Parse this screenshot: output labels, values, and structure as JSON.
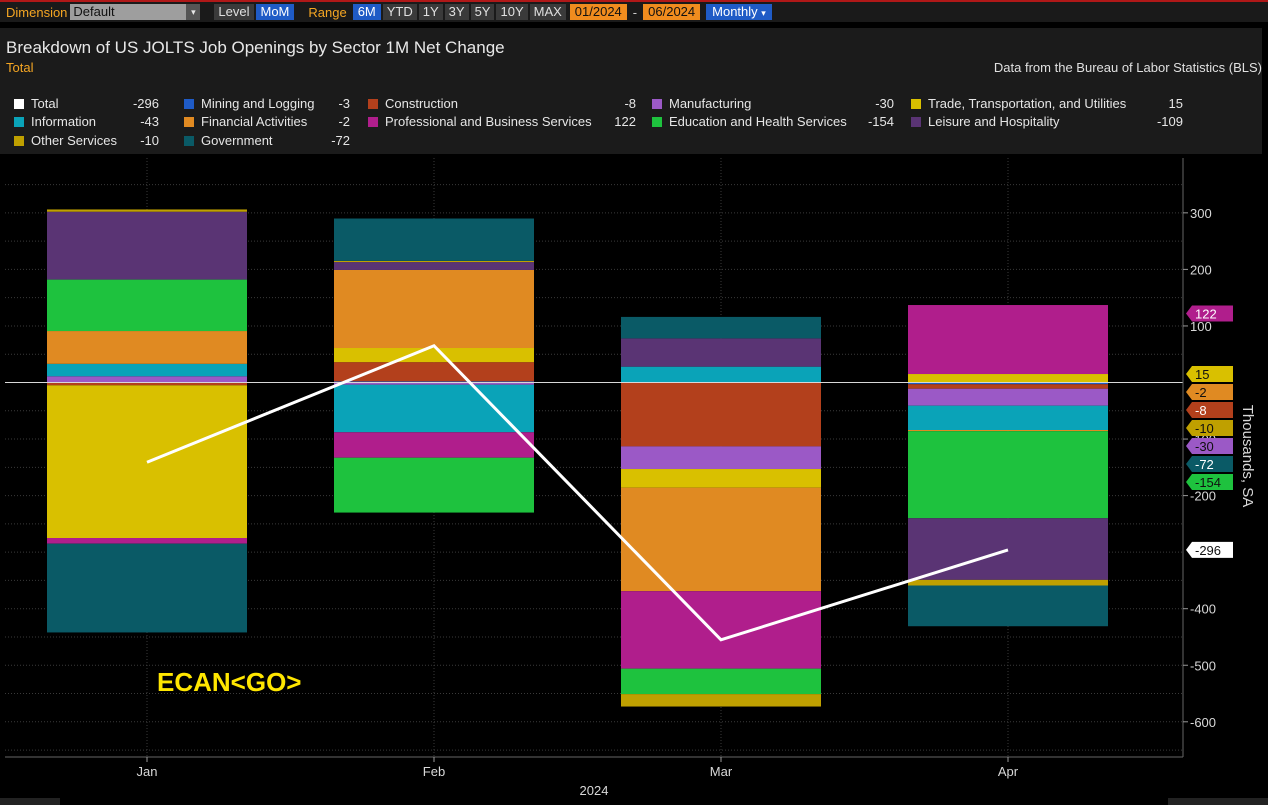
{
  "toolbar": {
    "dimension_label": "Dimension",
    "dimension_value": "Default",
    "level_label": "Level",
    "level_value": "MoM",
    "range_label": "Range",
    "ranges": [
      "6M",
      "YTD",
      "1Y",
      "3Y",
      "5Y",
      "10Y",
      "MAX"
    ],
    "active_range": "6M",
    "start_date": "01/2024",
    "end_date": "06/2024",
    "frequency": "Monthly"
  },
  "header": {
    "title": "Breakdown of US JOLTS Job Openings by Sector 1M Net Change",
    "subtitle": "Total",
    "source": "Data from the Bureau of Labor Statistics (BLS)"
  },
  "legend": [
    {
      "name": "Total",
      "value": "-296",
      "color": "#ffffff"
    },
    {
      "name": "Mining and Logging",
      "value": "-3",
      "color": "#1f5bc6"
    },
    {
      "name": "Construction",
      "value": "-8",
      "color": "#b3401c"
    },
    {
      "name": "Manufacturing",
      "value": "-30",
      "color": "#9b59c6"
    },
    {
      "name": "Trade, Transportation, and Utilities",
      "value": "15",
      "color": "#d9c000"
    },
    {
      "name": "Information",
      "value": "-43",
      "color": "#0aa3b8"
    },
    {
      "name": "Financial Activities",
      "value": "-2",
      "color": "#e08a22"
    },
    {
      "name": "Professional and Business Services",
      "value": "122",
      "color": "#b01e8c"
    },
    {
      "name": "Education and Health Services",
      "value": "-154",
      "color": "#1ec23e"
    },
    {
      "name": "Leisure and Hospitality",
      "value": "-109",
      "color": "#5a3474"
    },
    {
      "name": "Other Services",
      "value": "-10",
      "color": "#bfa000"
    },
    {
      "name": "Government",
      "value": "-72",
      "color": "#0a5a66"
    }
  ],
  "chart_data": {
    "type": "bar",
    "stacked": true,
    "categories": [
      "Jan",
      "Feb",
      "Mar",
      "Apr"
    ],
    "x_group_label": "2024",
    "ylabel": "Thousands, SA",
    "ylim": [
      -645,
      400
    ],
    "yticks": [
      300,
      200,
      100,
      -100,
      -200,
      -400,
      -500,
      -600
    ],
    "series": [
      {
        "name": "Mining and Logging",
        "color": "#1f5bc6",
        "values": [
          0,
          2,
          0,
          -3
        ]
      },
      {
        "name": "Construction",
        "color": "#b3401c",
        "values": [
          -5,
          34,
          -113,
          -8
        ]
      },
      {
        "name": "Manufacturing",
        "color": "#9b59c6",
        "values": [
          11,
          -4,
          -40,
          -30
        ]
      },
      {
        "name": "Trade, Transportation, and Utilities",
        "color": "#d9c000",
        "values": [
          -270,
          25,
          -33,
          15
        ]
      },
      {
        "name": "Information",
        "color": "#0aa3b8",
        "values": [
          22,
          -84,
          28,
          -43
        ]
      },
      {
        "name": "Financial Activities",
        "color": "#e08a22",
        "values": [
          58,
          138,
          -183,
          -2
        ]
      },
      {
        "name": "Professional and Business Services",
        "color": "#b01e8c",
        "values": [
          -10,
          -45,
          -137,
          122
        ]
      },
      {
        "name": "Education and Health Services",
        "color": "#1ec23e",
        "values": [
          91,
          -97,
          -45,
          -154
        ]
      },
      {
        "name": "Leisure and Hospitality",
        "color": "#5a3474",
        "values": [
          120,
          14,
          50,
          -109
        ]
      },
      {
        "name": "Other Services",
        "color": "#bfa000",
        "values": [
          4,
          2,
          -22,
          -10
        ]
      },
      {
        "name": "Government",
        "color": "#0a5a66",
        "values": [
          -157,
          75,
          38,
          -72
        ]
      }
    ],
    "total": {
      "name": "Total",
      "color": "#ffffff",
      "values": [
        -141,
        65,
        -455,
        -296
      ]
    },
    "end_labels": [
      {
        "text": "122",
        "value": 122,
        "color": "#b01e8c",
        "text_color": "#ffffff"
      },
      {
        "text": "15",
        "value": 15,
        "color": "#d9c000",
        "text_color": "#111111"
      },
      {
        "text": "-8",
        "value": -8,
        "color": "#b3401c",
        "text_color": "#ffffff"
      },
      {
        "text": "-30",
        "value": -30,
        "color": "#9b59c6",
        "text_color": "#111111"
      },
      {
        "text": "-2",
        "value": -2,
        "color": "#e08a22",
        "text_color": "#111111"
      },
      {
        "text": "-154",
        "value": -154,
        "color": "#1ec23e",
        "text_color": "#111111"
      },
      {
        "text": "-296",
        "value": -296,
        "color": "#ffffff",
        "text_color": "#111111"
      },
      {
        "text": "-10",
        "value": -10,
        "color": "#bfa000",
        "text_color": "#111111"
      },
      {
        "text": "-72",
        "value": -72,
        "color": "#0a5a66",
        "text_color": "#ffffff"
      }
    ]
  },
  "brand": "ECAN<GO>"
}
